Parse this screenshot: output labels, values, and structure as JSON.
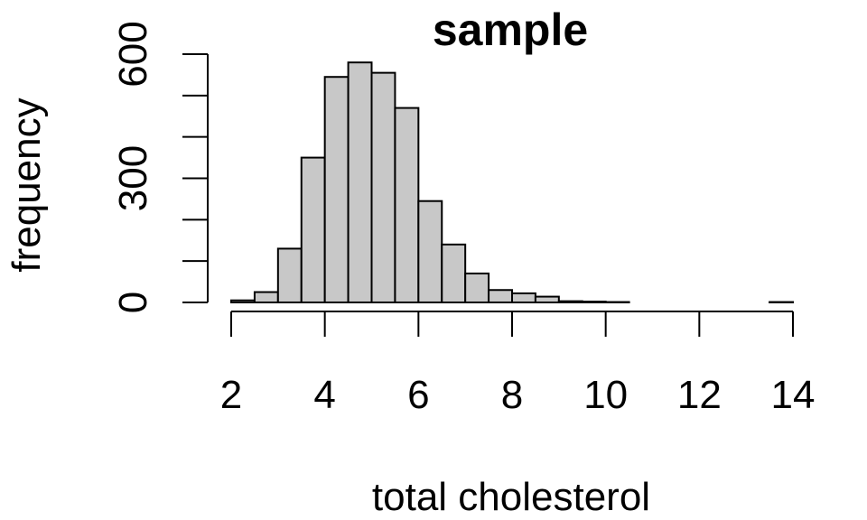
{
  "chart_data": {
    "type": "bar",
    "title": "sample",
    "xlabel": "total cholesterol",
    "ylabel": "frequency",
    "xlim": [
      2,
      14
    ],
    "ylim": [
      0,
      600
    ],
    "xticks": [
      2,
      4,
      6,
      8,
      10,
      12,
      14
    ],
    "yticks": [
      0,
      300,
      600
    ],
    "y_minor_ticks": [
      100,
      200,
      400,
      500
    ],
    "grid": false,
    "bar_fill": "#c8c8c8",
    "bins": [
      {
        "start": 2.0,
        "end": 2.5,
        "value": 5
      },
      {
        "start": 2.5,
        "end": 3.0,
        "value": 25
      },
      {
        "start": 3.0,
        "end": 3.5,
        "value": 130
      },
      {
        "start": 3.5,
        "end": 4.0,
        "value": 350
      },
      {
        "start": 4.0,
        "end": 4.5,
        "value": 545
      },
      {
        "start": 4.5,
        "end": 5.0,
        "value": 580
      },
      {
        "start": 5.0,
        "end": 5.5,
        "value": 555
      },
      {
        "start": 5.5,
        "end": 6.0,
        "value": 470
      },
      {
        "start": 6.0,
        "end": 6.5,
        "value": 245
      },
      {
        "start": 6.5,
        "end": 7.0,
        "value": 140
      },
      {
        "start": 7.0,
        "end": 7.5,
        "value": 70
      },
      {
        "start": 7.5,
        "end": 8.0,
        "value": 30
      },
      {
        "start": 8.0,
        "end": 8.5,
        "value": 22
      },
      {
        "start": 8.5,
        "end": 9.0,
        "value": 14
      },
      {
        "start": 9.0,
        "end": 9.5,
        "value": 3
      },
      {
        "start": 9.5,
        "end": 10.0,
        "value": 2
      },
      {
        "start": 10.0,
        "end": 10.5,
        "value": 1
      },
      {
        "start": 10.5,
        "end": 11.0,
        "value": 0
      },
      {
        "start": 11.0,
        "end": 11.5,
        "value": 0
      },
      {
        "start": 11.5,
        "end": 12.0,
        "value": 0
      },
      {
        "start": 12.0,
        "end": 12.5,
        "value": 0
      },
      {
        "start": 12.5,
        "end": 13.0,
        "value": 0
      },
      {
        "start": 13.0,
        "end": 13.5,
        "value": 0
      },
      {
        "start": 13.5,
        "end": 14.0,
        "value": 1
      }
    ]
  }
}
